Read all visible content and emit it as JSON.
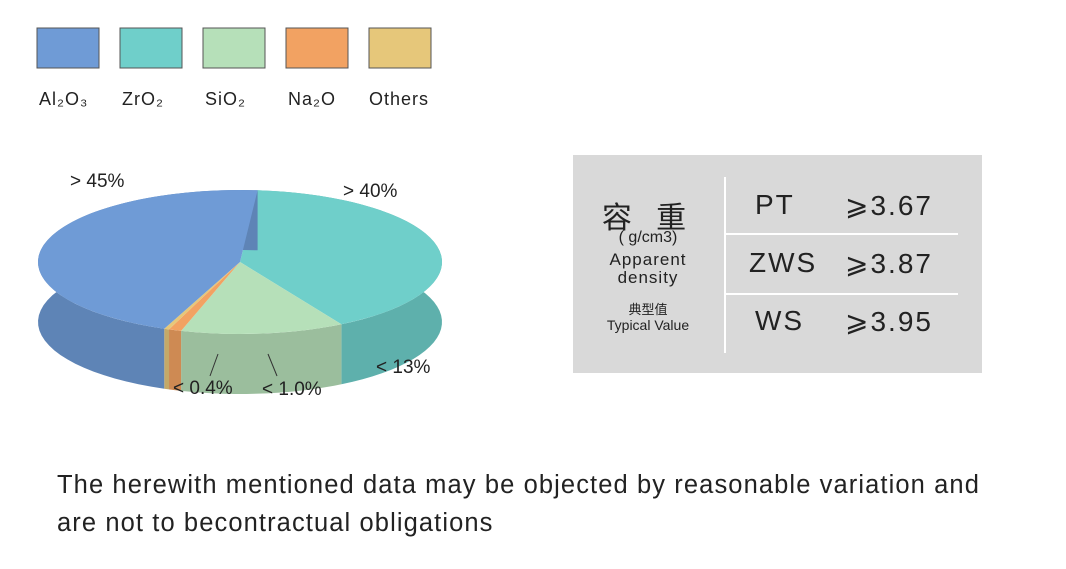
{
  "chart_data": {
    "type": "pie",
    "categories": [
      "Al₂O₃",
      "ZrO₂",
      "SiO₂",
      "Na₂O",
      "Others"
    ],
    "values": [
      45,
      40,
      13,
      1.0,
      0.4
    ],
    "value_labels": [
      "> 45%",
      "> 40%",
      "< 13%",
      "< 1.0%",
      "< 0.4%"
    ],
    "colors": [
      "#6f9bd6",
      "#6fcfca",
      "#b6e0b9",
      "#f2a262",
      "#e6c77a"
    ]
  },
  "table": {
    "title": "容 重",
    "unit": "( g/cm3)",
    "label": "Apparent density",
    "label_cn": "典型值",
    "label_en": "Typical Value",
    "rows": [
      [
        "PT",
        "⩾3.67"
      ],
      [
        "ZWS",
        "⩾3.87"
      ],
      [
        "WS",
        "⩾3.95"
      ]
    ]
  },
  "note": "The herewith mentioned data may be objected by reasonable variation and are not to becontractual obligations"
}
